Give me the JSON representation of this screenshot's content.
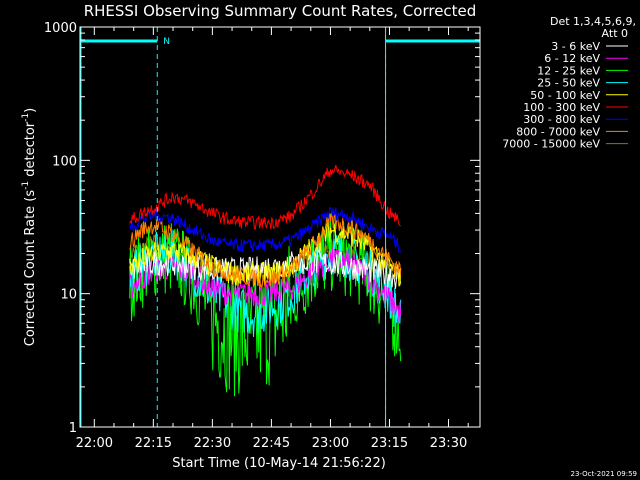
{
  "chart_data": {
    "type": "line",
    "title": "RHESSI Observing Summary Count Rates, Corrected",
    "xlabel": "Start Time (10-May-14 21:56:22)",
    "ylabel": "Corrected Count Rate (s⁻¹ detector⁻¹)",
    "ylabel_main": "Corrected Count Rate (s",
    "ylabel_sup1": "-1",
    "ylabel_mid": " detector",
    "ylabel_sup2": "-1",
    "ylabel_end": ")",
    "y_scale": "log",
    "ylim": [
      1,
      1000
    ],
    "xlim": [
      "21:56:22",
      "23:38:00"
    ],
    "x_ticks": [
      "22:00",
      "22:15",
      "22:30",
      "22:45",
      "23:00",
      "23:15",
      "23:30"
    ],
    "y_ticks": [
      "1",
      "10",
      "100",
      "1000"
    ],
    "legend_header": [
      "Det 1,3,4,5,6,9,",
      "Att 0"
    ],
    "legend_position": "top-right",
    "timestamp": "23-Oct-2021 09:59",
    "flags": {
      "label": "N",
      "night_intervals": [
        [
          "21:56:22",
          "22:16:00"
        ],
        [
          "23:14:00",
          "23:38:00"
        ]
      ],
      "boundaries": [
        "22:16:00",
        "23:14:00"
      ]
    },
    "series": [
      {
        "name": "3 - 6 keV",
        "color": "#ffffff",
        "x": [
          "22:09",
          "22:12",
          "22:15",
          "22:20",
          "22:25",
          "22:30",
          "22:35",
          "22:40",
          "22:45",
          "22:50",
          "22:55",
          "23:00",
          "23:05",
          "23:10",
          "23:15",
          "23:18"
        ],
        "values": [
          15,
          16,
          17,
          17,
          16,
          15,
          15,
          15,
          16,
          17,
          17,
          17,
          16,
          15,
          14,
          13
        ]
      },
      {
        "name": "6 - 12 keV",
        "color": "#ff00ff",
        "x": [
          "22:09",
          "22:12",
          "22:15",
          "22:20",
          "22:25",
          "22:30",
          "22:35",
          "22:40",
          "22:45",
          "22:50",
          "22:55",
          "23:00",
          "23:05",
          "23:10",
          "23:15",
          "23:18"
        ],
        "values": [
          11,
          13,
          15,
          16,
          14,
          11,
          10,
          10,
          10,
          11,
          14,
          18,
          17,
          13,
          9,
          7
        ]
      },
      {
        "name": "12 - 25 keV",
        "color": "#00ff00",
        "x": [
          "22:09",
          "22:12",
          "22:15",
          "22:20",
          "22:25",
          "22:30",
          "22:35",
          "22:40",
          "22:45",
          "22:50",
          "22:55",
          "23:00",
          "23:05",
          "23:10",
          "23:15",
          "23:18"
        ],
        "values": [
          12,
          15,
          18,
          19,
          13,
          7,
          5,
          5,
          6,
          9,
          15,
          20,
          18,
          14,
          8,
          5
        ]
      },
      {
        "name": "25 - 50 keV",
        "color": "#00ffff",
        "x": [
          "22:09",
          "22:12",
          "22:15",
          "22:20",
          "22:25",
          "22:30",
          "22:35",
          "22:40",
          "22:45",
          "22:50",
          "22:55",
          "23:00",
          "23:05",
          "23:10",
          "23:15",
          "23:18"
        ],
        "values": [
          13,
          16,
          19,
          20,
          15,
          10,
          8,
          7,
          8,
          10,
          15,
          21,
          19,
          15,
          10,
          6
        ]
      },
      {
        "name": "50 - 100 keV",
        "color": "#ffff00",
        "x": [
          "22:09",
          "22:12",
          "22:15",
          "22:20",
          "22:25",
          "22:30",
          "22:35",
          "22:40",
          "22:45",
          "22:50",
          "22:55",
          "23:00",
          "23:05",
          "23:10",
          "23:15",
          "23:18"
        ],
        "values": [
          16,
          18,
          20,
          21,
          19,
          16,
          14,
          14,
          14,
          16,
          22,
          30,
          28,
          22,
          16,
          13
        ]
      },
      {
        "name": "100 - 300 keV",
        "color": "#ff0000",
        "x": [
          "22:09",
          "22:12",
          "22:15",
          "22:20",
          "22:25",
          "22:30",
          "22:35",
          "22:40",
          "22:45",
          "22:50",
          "22:55",
          "23:00",
          "23:05",
          "23:10",
          "23:15",
          "23:18"
        ],
        "values": [
          35,
          40,
          44,
          54,
          48,
          40,
          35,
          34,
          34,
          38,
          55,
          85,
          78,
          65,
          40,
          34
        ]
      },
      {
        "name": "300 - 800 keV",
        "color": "#0000ff",
        "x": [
          "22:09",
          "22:12",
          "22:15",
          "22:20",
          "22:25",
          "22:30",
          "22:35",
          "22:40",
          "22:45",
          "22:50",
          "22:55",
          "23:00",
          "23:05",
          "23:10",
          "23:15",
          "23:18"
        ],
        "values": [
          31,
          36,
          39,
          37,
          30,
          25,
          23,
          23,
          23,
          25,
          31,
          41,
          38,
          31,
          27,
          22
        ]
      },
      {
        "name": "800 - 7000 keV",
        "color": "#ff8000",
        "x": [
          "22:09",
          "22:12",
          "22:15",
          "22:20",
          "22:25",
          "22:30",
          "22:35",
          "22:40",
          "22:45",
          "22:50",
          "22:55",
          "23:00",
          "23:05",
          "23:10",
          "23:15",
          "23:18"
        ],
        "values": [
          24,
          30,
          33,
          28,
          21,
          16,
          14,
          13,
          13,
          15,
          22,
          35,
          32,
          25,
          18,
          15
        ]
      },
      {
        "name": "7000 - 15000 keV",
        "color": "#808000",
        "x": [
          "22:09",
          "22:12",
          "22:15",
          "22:20",
          "22:25",
          "22:30",
          "22:35",
          "22:40",
          "22:45",
          "22:50",
          "22:55",
          "23:00",
          "23:05",
          "23:10",
          "23:15",
          "23:18"
        ],
        "values": [
          20,
          22,
          24,
          22,
          18,
          15,
          14,
          14,
          14,
          15,
          18,
          22,
          20,
          17,
          15,
          13
        ]
      }
    ]
  }
}
